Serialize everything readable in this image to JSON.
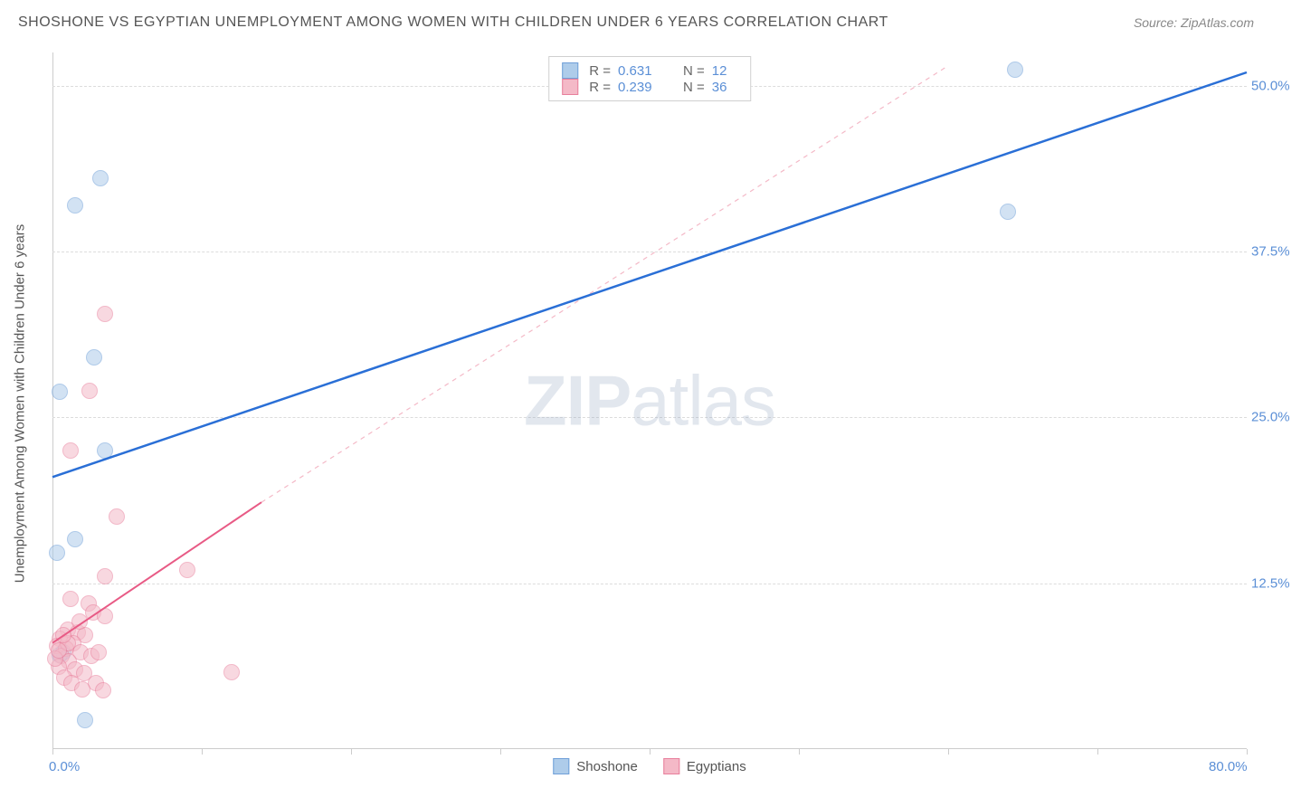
{
  "title": "SHOSHONE VS EGYPTIAN UNEMPLOYMENT AMONG WOMEN WITH CHILDREN UNDER 6 YEARS CORRELATION CHART",
  "source": "Source: ZipAtlas.com",
  "watermark_bold": "ZIP",
  "watermark_rest": "atlas",
  "y_axis_label": "Unemployment Among Women with Children Under 6 years",
  "chart": {
    "type": "scatter",
    "xlim": [
      0,
      80
    ],
    "ylim": [
      0,
      52.5
    ],
    "x_tick_positions": [
      0,
      10,
      20,
      30,
      40,
      50,
      60,
      70,
      80
    ],
    "x_tick_labels": {
      "0": "0.0%",
      "80": "80.0%"
    },
    "y_gridlines": [
      12.5,
      25,
      37.5,
      50
    ],
    "y_tick_labels": {
      "12.5": "12.5%",
      "25": "25.0%",
      "37.5": "37.5%",
      "50": "50.0%"
    },
    "background_color": "#ffffff",
    "grid_color": "#dcdcdc",
    "axis_color": "#cccccc",
    "tick_label_color": "#5b8fd6",
    "point_radius": 9,
    "point_opacity": 0.55,
    "series": [
      {
        "name": "Shoshone",
        "fill": "#aeccea",
        "stroke": "#6f9fd8",
        "r": "0.631",
        "n": "12",
        "trend": {
          "x1": 0,
          "y1": 20.5,
          "x2": 80,
          "y2": 51.0,
          "color": "#2a6fd6",
          "width": 2.5,
          "dash": "none"
        },
        "points": [
          {
            "x": 3.2,
            "y": 43.0
          },
          {
            "x": 1.5,
            "y": 41.0
          },
          {
            "x": 2.8,
            "y": 29.5
          },
          {
            "x": 0.5,
            "y": 26.9
          },
          {
            "x": 3.5,
            "y": 22.5
          },
          {
            "x": 1.5,
            "y": 15.8
          },
          {
            "x": 0.3,
            "y": 14.8
          },
          {
            "x": 0.7,
            "y": 7.3
          },
          {
            "x": 0.5,
            "y": 7.1
          },
          {
            "x": 2.2,
            "y": 2.2
          },
          {
            "x": 64.5,
            "y": 51.2
          },
          {
            "x": 64.0,
            "y": 40.5
          }
        ]
      },
      {
        "name": "Egyptians",
        "fill": "#f4b9c7",
        "stroke": "#e87f9c",
        "r": "0.239",
        "n": "36",
        "trend_solid": {
          "x1": 0,
          "y1": 8.0,
          "x2": 14,
          "y2": 18.6,
          "color": "#e85a85",
          "width": 2,
          "dash": "none"
        },
        "trend_dash": {
          "x1": 14,
          "y1": 18.6,
          "x2": 60,
          "y2": 51.5,
          "color": "#f4b9c7",
          "width": 1.2,
          "dash": "5,5"
        },
        "points": [
          {
            "x": 3.5,
            "y": 32.8
          },
          {
            "x": 2.5,
            "y": 27.0
          },
          {
            "x": 1.2,
            "y": 22.5
          },
          {
            "x": 4.3,
            "y": 17.5
          },
          {
            "x": 3.5,
            "y": 13.0
          },
          {
            "x": 9.0,
            "y": 13.5
          },
          {
            "x": 1.2,
            "y": 11.3
          },
          {
            "x": 2.4,
            "y": 11.0
          },
          {
            "x": 2.7,
            "y": 10.3
          },
          {
            "x": 3.5,
            "y": 10.0
          },
          {
            "x": 1.0,
            "y": 9.0
          },
          {
            "x": 1.7,
            "y": 8.8
          },
          {
            "x": 2.2,
            "y": 8.6
          },
          {
            "x": 0.5,
            "y": 8.3
          },
          {
            "x": 1.4,
            "y": 8.0
          },
          {
            "x": 0.3,
            "y": 7.8
          },
          {
            "x": 0.9,
            "y": 7.6
          },
          {
            "x": 1.9,
            "y": 7.3
          },
          {
            "x": 0.6,
            "y": 7.0
          },
          {
            "x": 2.6,
            "y": 7.0
          },
          {
            "x": 1.1,
            "y": 6.6
          },
          {
            "x": 3.1,
            "y": 7.3
          },
          {
            "x": 0.4,
            "y": 6.2
          },
          {
            "x": 1.5,
            "y": 6.0
          },
          {
            "x": 2.1,
            "y": 5.7
          },
          {
            "x": 0.8,
            "y": 5.4
          },
          {
            "x": 1.3,
            "y": 5.0
          },
          {
            "x": 2.9,
            "y": 5.0
          },
          {
            "x": 12.0,
            "y": 5.8
          },
          {
            "x": 2.0,
            "y": 4.5
          },
          {
            "x": 3.4,
            "y": 4.4
          },
          {
            "x": 1.0,
            "y": 8.0
          },
          {
            "x": 0.2,
            "y": 6.8
          },
          {
            "x": 0.7,
            "y": 8.6
          },
          {
            "x": 1.8,
            "y": 9.6
          },
          {
            "x": 0.4,
            "y": 7.4
          }
        ]
      }
    ]
  },
  "legend_bottom": [
    {
      "label": "Shoshone",
      "fill": "#aeccea",
      "stroke": "#6f9fd8"
    },
    {
      "label": "Egyptians",
      "fill": "#f4b9c7",
      "stroke": "#e87f9c"
    }
  ]
}
